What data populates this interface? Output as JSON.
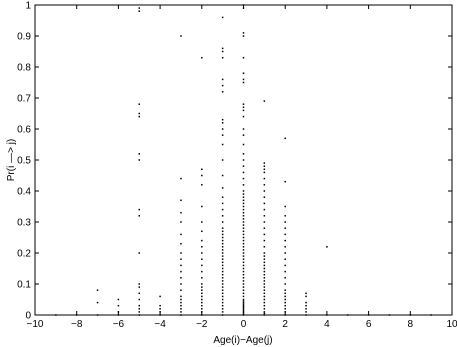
{
  "chart_data": {
    "type": "scatter",
    "title": "",
    "xlabel": "Age(i)−Age(j)",
    "ylabel": "Pr(i —> j)",
    "xlim": [
      -10,
      10
    ],
    "ylim": [
      0,
      1
    ],
    "grid": false,
    "x_ticks": [
      -10,
      -8,
      -6,
      -4,
      -2,
      0,
      2,
      4,
      6,
      8,
      10
    ],
    "y_ticks": [
      0,
      0.1,
      0.2,
      0.3,
      0.4,
      0.5,
      0.6,
      0.7,
      0.8,
      0.9,
      1
    ],
    "x_tick_labels": [
      "−10",
      "−8",
      "−6",
      "−4",
      "−2",
      "0",
      "2",
      "4",
      "6",
      "8",
      "10"
    ],
    "y_tick_labels": [
      "0",
      "0.1",
      "0.2",
      "0.3",
      "0.4",
      "0.5",
      "0.6",
      "0.7",
      "0.8",
      "0.9",
      "1"
    ],
    "marker": "dot",
    "marker_color": "#000000",
    "points": [
      [
        -9,
        0
      ],
      [
        -8,
        0
      ],
      [
        -7,
        0
      ],
      [
        -7,
        0.04
      ],
      [
        -7,
        0.08
      ],
      [
        -6,
        0
      ],
      [
        -6,
        0.01
      ],
      [
        -6,
        0.03
      ],
      [
        -6,
        0.05
      ],
      [
        -5,
        0
      ],
      [
        -5,
        0.01
      ],
      [
        -5,
        0.02
      ],
      [
        -5,
        0.03
      ],
      [
        -5,
        0.05
      ],
      [
        -5,
        0.07
      ],
      [
        -5,
        0.09
      ],
      [
        -5,
        0.1
      ],
      [
        -5,
        0.2
      ],
      [
        -5,
        0.32
      ],
      [
        -5,
        0.34
      ],
      [
        -5,
        0.5
      ],
      [
        -5,
        0.52
      ],
      [
        -5,
        0.64
      ],
      [
        -5,
        0.65
      ],
      [
        -5,
        0.68
      ],
      [
        -5,
        0.98
      ],
      [
        -5,
        0.99
      ],
      [
        -4,
        0
      ],
      [
        -4,
        0.01
      ],
      [
        -4,
        0.02
      ],
      [
        -4,
        0.03
      ],
      [
        -4,
        0.06
      ],
      [
        -3,
        0
      ],
      [
        -3,
        0.01
      ],
      [
        -3,
        0.02
      ],
      [
        -3,
        0.03
      ],
      [
        -3,
        0.04
      ],
      [
        -3,
        0.05
      ],
      [
        -3,
        0.06
      ],
      [
        -3,
        0.08
      ],
      [
        -3,
        0.1
      ],
      [
        -3,
        0.12
      ],
      [
        -3,
        0.14
      ],
      [
        -3,
        0.16
      ],
      [
        -3,
        0.18
      ],
      [
        -3,
        0.2
      ],
      [
        -3,
        0.23
      ],
      [
        -3,
        0.26
      ],
      [
        -3,
        0.3
      ],
      [
        -3,
        0.33
      ],
      [
        -3,
        0.37
      ],
      [
        -3,
        0.44
      ],
      [
        -3,
        0.9
      ],
      [
        -2,
        0
      ],
      [
        -2,
        0.01
      ],
      [
        -2,
        0.02
      ],
      [
        -2,
        0.03
      ],
      [
        -2,
        0.04
      ],
      [
        -2,
        0.05
      ],
      [
        -2,
        0.06
      ],
      [
        -2,
        0.07
      ],
      [
        -2,
        0.08
      ],
      [
        -2,
        0.09
      ],
      [
        -2,
        0.1
      ],
      [
        -2,
        0.12
      ],
      [
        -2,
        0.14
      ],
      [
        -2,
        0.16
      ],
      [
        -2,
        0.18
      ],
      [
        -2,
        0.2
      ],
      [
        -2,
        0.22
      ],
      [
        -2,
        0.24
      ],
      [
        -2,
        0.27
      ],
      [
        -2,
        0.3
      ],
      [
        -2,
        0.35
      ],
      [
        -2,
        0.42
      ],
      [
        -2,
        0.45
      ],
      [
        -2,
        0.47
      ],
      [
        -2,
        0.83
      ],
      [
        -1,
        0
      ],
      [
        -1,
        0.01
      ],
      [
        -1,
        0.02
      ],
      [
        -1,
        0.03
      ],
      [
        -1,
        0.04
      ],
      [
        -1,
        0.05
      ],
      [
        -1,
        0.06
      ],
      [
        -1,
        0.07
      ],
      [
        -1,
        0.08
      ],
      [
        -1,
        0.09
      ],
      [
        -1,
        0.1
      ],
      [
        -1,
        0.11
      ],
      [
        -1,
        0.12
      ],
      [
        -1,
        0.13
      ],
      [
        -1,
        0.14
      ],
      [
        -1,
        0.15
      ],
      [
        -1,
        0.16
      ],
      [
        -1,
        0.17
      ],
      [
        -1,
        0.18
      ],
      [
        -1,
        0.19
      ],
      [
        -1,
        0.2
      ],
      [
        -1,
        0.21
      ],
      [
        -1,
        0.22
      ],
      [
        -1,
        0.23
      ],
      [
        -1,
        0.24
      ],
      [
        -1,
        0.25
      ],
      [
        -1,
        0.26
      ],
      [
        -1,
        0.27
      ],
      [
        -1,
        0.28
      ],
      [
        -1,
        0.3
      ],
      [
        -1,
        0.32
      ],
      [
        -1,
        0.34
      ],
      [
        -1,
        0.36
      ],
      [
        -1,
        0.38
      ],
      [
        -1,
        0.41
      ],
      [
        -1,
        0.45
      ],
      [
        -1,
        0.5
      ],
      [
        -1,
        0.55
      ],
      [
        -1,
        0.58
      ],
      [
        -1,
        0.6
      ],
      [
        -1,
        0.62
      ],
      [
        -1,
        0.63
      ],
      [
        -1,
        0.72
      ],
      [
        -1,
        0.74
      ],
      [
        -1,
        0.76
      ],
      [
        -1,
        0.83
      ],
      [
        -1,
        0.85
      ],
      [
        -1,
        0.86
      ],
      [
        -1,
        0.96
      ],
      [
        0,
        0
      ],
      [
        0,
        0.005
      ],
      [
        0,
        0.01
      ],
      [
        0,
        0.015
      ],
      [
        0,
        0.02
      ],
      [
        0,
        0.025
      ],
      [
        0,
        0.03
      ],
      [
        0,
        0.035
      ],
      [
        0,
        0.04
      ],
      [
        0,
        0.045
      ],
      [
        0,
        0.05
      ],
      [
        0,
        0.06
      ],
      [
        0,
        0.07
      ],
      [
        0,
        0.08
      ],
      [
        0,
        0.09
      ],
      [
        0,
        0.1
      ],
      [
        0,
        0.11
      ],
      [
        0,
        0.12
      ],
      [
        0,
        0.13
      ],
      [
        0,
        0.14
      ],
      [
        0,
        0.15
      ],
      [
        0,
        0.16
      ],
      [
        0,
        0.17
      ],
      [
        0,
        0.18
      ],
      [
        0,
        0.19
      ],
      [
        0,
        0.2
      ],
      [
        0,
        0.21
      ],
      [
        0,
        0.22
      ],
      [
        0,
        0.23
      ],
      [
        0,
        0.24
      ],
      [
        0,
        0.25
      ],
      [
        0,
        0.26
      ],
      [
        0,
        0.27
      ],
      [
        0,
        0.28
      ],
      [
        0,
        0.29
      ],
      [
        0,
        0.3
      ],
      [
        0,
        0.31
      ],
      [
        0,
        0.32
      ],
      [
        0,
        0.33
      ],
      [
        0,
        0.34
      ],
      [
        0,
        0.35
      ],
      [
        0,
        0.36
      ],
      [
        0,
        0.37
      ],
      [
        0,
        0.38
      ],
      [
        0,
        0.39
      ],
      [
        0,
        0.4
      ],
      [
        0,
        0.42
      ],
      [
        0,
        0.44
      ],
      [
        0,
        0.46
      ],
      [
        0,
        0.48
      ],
      [
        0,
        0.5
      ],
      [
        0,
        0.52
      ],
      [
        0,
        0.55
      ],
      [
        0,
        0.58
      ],
      [
        0,
        0.6
      ],
      [
        0,
        0.64
      ],
      [
        0,
        0.66
      ],
      [
        0,
        0.67
      ],
      [
        0,
        0.68
      ],
      [
        0,
        0.75
      ],
      [
        0,
        0.76
      ],
      [
        0,
        0.78
      ],
      [
        0,
        0.83
      ],
      [
        0,
        0.9
      ],
      [
        0,
        0.91
      ],
      [
        0,
        0.99
      ],
      [
        0,
        1.0
      ],
      [
        1,
        0
      ],
      [
        1,
        0.005
      ],
      [
        1,
        0.01
      ],
      [
        1,
        0.02
      ],
      [
        1,
        0.03
      ],
      [
        1,
        0.04
      ],
      [
        1,
        0.05
      ],
      [
        1,
        0.06
      ],
      [
        1,
        0.07
      ],
      [
        1,
        0.08
      ],
      [
        1,
        0.09
      ],
      [
        1,
        0.1
      ],
      [
        1,
        0.11
      ],
      [
        1,
        0.12
      ],
      [
        1,
        0.13
      ],
      [
        1,
        0.14
      ],
      [
        1,
        0.15
      ],
      [
        1,
        0.16
      ],
      [
        1,
        0.17
      ],
      [
        1,
        0.18
      ],
      [
        1,
        0.19
      ],
      [
        1,
        0.2
      ],
      [
        1,
        0.22
      ],
      [
        1,
        0.24
      ],
      [
        1,
        0.26
      ],
      [
        1,
        0.28
      ],
      [
        1,
        0.3
      ],
      [
        1,
        0.32
      ],
      [
        1,
        0.34
      ],
      [
        1,
        0.36
      ],
      [
        1,
        0.38
      ],
      [
        1,
        0.4
      ],
      [
        1,
        0.42
      ],
      [
        1,
        0.44
      ],
      [
        1,
        0.46
      ],
      [
        1,
        0.47
      ],
      [
        1,
        0.48
      ],
      [
        1,
        0.49
      ],
      [
        1,
        0.69
      ],
      [
        2,
        0
      ],
      [
        2,
        0.01
      ],
      [
        2,
        0.02
      ],
      [
        2,
        0.03
      ],
      [
        2,
        0.04
      ],
      [
        2,
        0.05
      ],
      [
        2,
        0.06
      ],
      [
        2,
        0.07
      ],
      [
        2,
        0.08
      ],
      [
        2,
        0.1
      ],
      [
        2,
        0.12
      ],
      [
        2,
        0.14
      ],
      [
        2,
        0.16
      ],
      [
        2,
        0.18
      ],
      [
        2,
        0.2
      ],
      [
        2,
        0.22
      ],
      [
        2,
        0.24
      ],
      [
        2,
        0.26
      ],
      [
        2,
        0.28
      ],
      [
        2,
        0.3
      ],
      [
        2,
        0.32
      ],
      [
        2,
        0.35
      ],
      [
        2,
        0.43
      ],
      [
        2,
        0.57
      ],
      [
        3,
        0
      ],
      [
        3,
        0.01
      ],
      [
        3,
        0.02
      ],
      [
        3,
        0.03
      ],
      [
        3,
        0.04
      ],
      [
        3,
        0.06
      ],
      [
        3,
        0.07
      ],
      [
        4,
        0
      ],
      [
        4,
        0.22
      ],
      [
        5,
        0
      ],
      [
        6,
        0
      ],
      [
        7,
        0
      ],
      [
        8,
        0
      ],
      [
        9,
        0
      ]
    ]
  }
}
